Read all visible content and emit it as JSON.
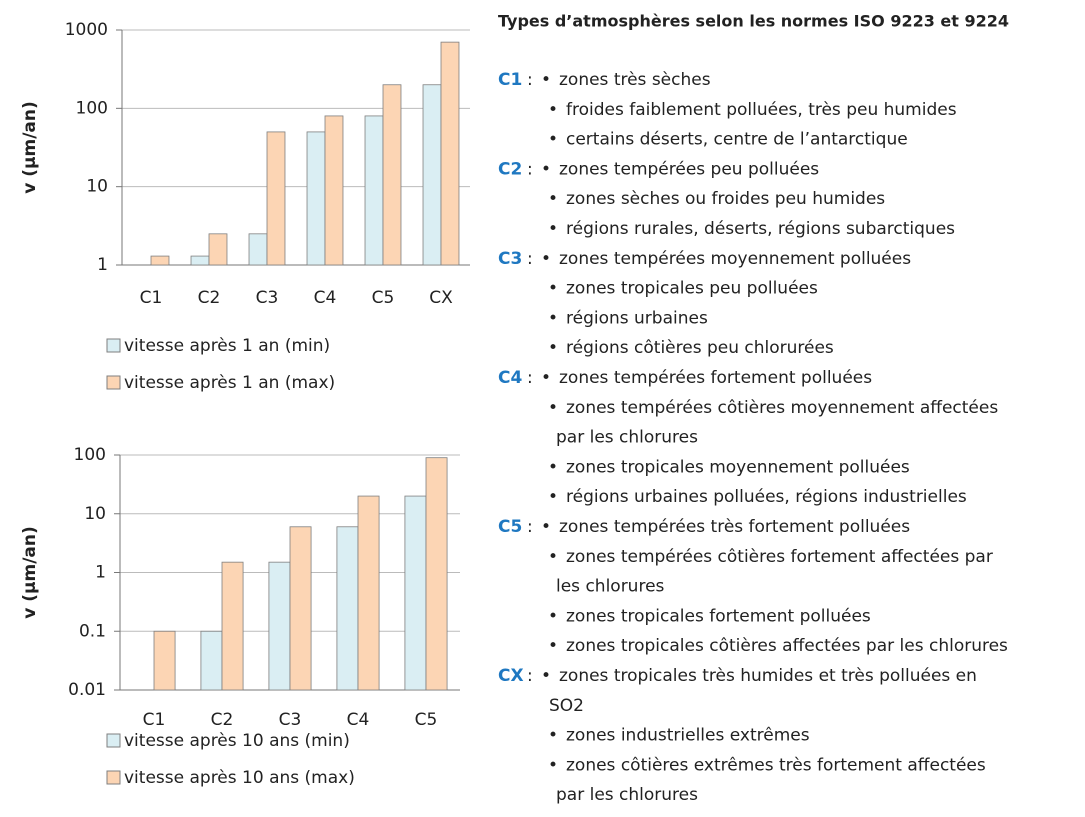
{
  "chart_data": [
    {
      "type": "bar",
      "y_label": "v (µm/an)",
      "log_scale": true,
      "grid": true,
      "categories": [
        "C1",
        "C2",
        "C3",
        "C4",
        "C5",
        "CX"
      ],
      "series": [
        {
          "name": "vitesse après 1 an (min)",
          "color": "#daeef3",
          "values": [
            null,
            1.3,
            2.5,
            50,
            80,
            200
          ]
        },
        {
          "name": "vitesse après 1 an (max)",
          "color": "#fcd5b4",
          "values": [
            1.3,
            2.5,
            50,
            80,
            200,
            700
          ]
        }
      ],
      "ylim": [
        1,
        1000
      ],
      "yticks": [
        1,
        10,
        100,
        1000
      ]
    },
    {
      "type": "bar",
      "y_label": "v (µm/an)",
      "log_scale": true,
      "grid": true,
      "categories": [
        "C1",
        "C2",
        "C3",
        "C4",
        "C5"
      ],
      "series": [
        {
          "name": "vitesse après 10 ans (min)",
          "color": "#daeef3",
          "values": [
            null,
            0.1,
            1.5,
            6,
            20
          ]
        },
        {
          "name": "vitesse après 10 ans (max)",
          "color": "#fcd5b4",
          "values": [
            0.1,
            1.5,
            6,
            20,
            90
          ]
        }
      ],
      "ylim": [
        0.01,
        100
      ],
      "yticks": [
        0.01,
        0.1,
        1,
        10,
        100
      ]
    }
  ],
  "panel": {
    "title": "Types d’atmosphères selon les normes ISO 9223 et 9224",
    "separator": ":",
    "bullet": "•",
    "groups": [
      {
        "code": "C1",
        "items": [
          [
            "zones très sèches"
          ],
          [
            "froides faiblement polluées, très peu humides"
          ],
          [
            "certains déserts, centre de l’antarctique"
          ]
        ]
      },
      {
        "code": "C2",
        "items": [
          [
            "zones tempérées peu polluées"
          ],
          [
            "zones sèches ou froides peu humides"
          ],
          [
            "régions rurales, déserts, régions subarctiques"
          ]
        ]
      },
      {
        "code": "C3",
        "items": [
          [
            "zones tempérées moyennement polluées"
          ],
          [
            "zones tropicales peu polluées"
          ],
          [
            "régions urbaines"
          ],
          [
            "régions côtières peu chlorurées"
          ]
        ]
      },
      {
        "code": "C4",
        "items": [
          [
            "zones tempérées fortement polluées"
          ],
          [
            "zones tempérées côtières moyennement affectées",
            "par les chlorures"
          ],
          [
            "zones tropicales moyennement polluées"
          ],
          [
            "régions urbaines polluées, régions industrielles"
          ]
        ]
      },
      {
        "code": "C5",
        "items": [
          [
            "zones tempérées très fortement polluées"
          ],
          [
            "zones tempérées côtières fortement affectées par",
            "les chlorures"
          ],
          [
            "zones tropicales fortement polluées"
          ],
          [
            "zones tropicales côtières affectées par les chlorures"
          ]
        ]
      },
      {
        "code": "CX",
        "items": [
          [
            "zones tropicales très humides et très polluées en",
            "SO2"
          ],
          [
            "zones industrielles extrêmes"
          ],
          [
            "zones côtières extrêmes très fortement affectées",
            "par les chlorures"
          ]
        ]
      }
    ]
  }
}
